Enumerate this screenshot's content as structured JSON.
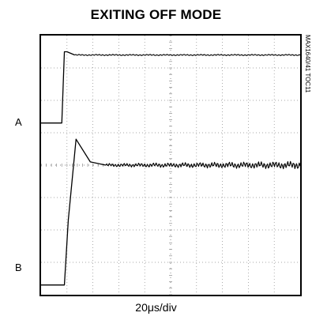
{
  "title": "EXITING OFF MODE",
  "part_code": "MAX1640/41 TOC11",
  "trace_labels": [
    "A",
    "B"
  ],
  "x_scale": "20μs/div",
  "colors": {
    "background": "#ffffff",
    "ink": "#000000",
    "grid": "#8a8a8a"
  },
  "chart_data": {
    "type": "line",
    "title": "EXITING OFF MODE",
    "xlabel": "20μs/div",
    "ylabel": "",
    "grid": true,
    "grid_divisions": {
      "x": 10,
      "y": 8
    },
    "xlim": [
      0,
      10
    ],
    "ylim": [
      0,
      8
    ],
    "series": [
      {
        "name": "A",
        "x": [
          0,
          0.8,
          0.9,
          1.0,
          1.3,
          10
        ],
        "y": [
          5.3,
          5.3,
          7.5,
          7.5,
          7.4,
          7.4
        ]
      },
      {
        "name": "B",
        "x": [
          0,
          0.9,
          1.05,
          1.35,
          1.9,
          2.5,
          10
        ],
        "y": [
          0.3,
          0.3,
          2.3,
          4.8,
          4.1,
          4.0,
          4.0
        ]
      }
    ]
  }
}
